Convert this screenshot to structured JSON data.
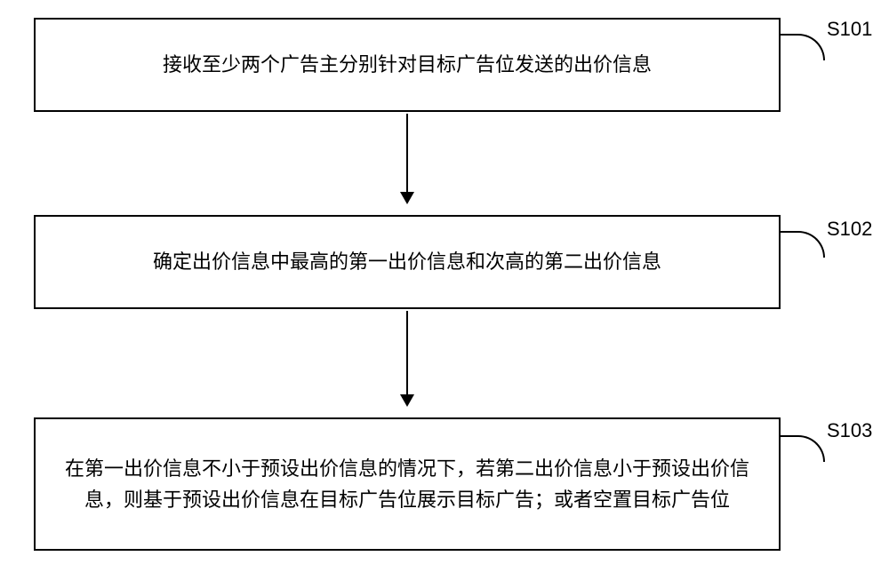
{
  "flowchart": {
    "type": "flowchart",
    "background_color": "#ffffff",
    "border_color": "#000000",
    "text_color": "#000000",
    "font_size": 22,
    "border_width": 2,
    "steps": [
      {
        "id": "S101",
        "label": "S101",
        "text": "接收至少两个广告主分别针对目标广告位发送的出价信息"
      },
      {
        "id": "S102",
        "label": "S102",
        "text": "确定出价信息中最高的第一出价信息和次高的第二出价信息"
      },
      {
        "id": "S103",
        "label": "S103",
        "text": "在第一出价信息不小于预设出价信息的情况下，若第二出价信息小于预设出价信息，则基于预设出价信息在目标广告位展示目标广告；或者空置目标广告位"
      }
    ],
    "edges": [
      {
        "from": "S101",
        "to": "S102"
      },
      {
        "from": "S102",
        "to": "S103"
      }
    ]
  }
}
